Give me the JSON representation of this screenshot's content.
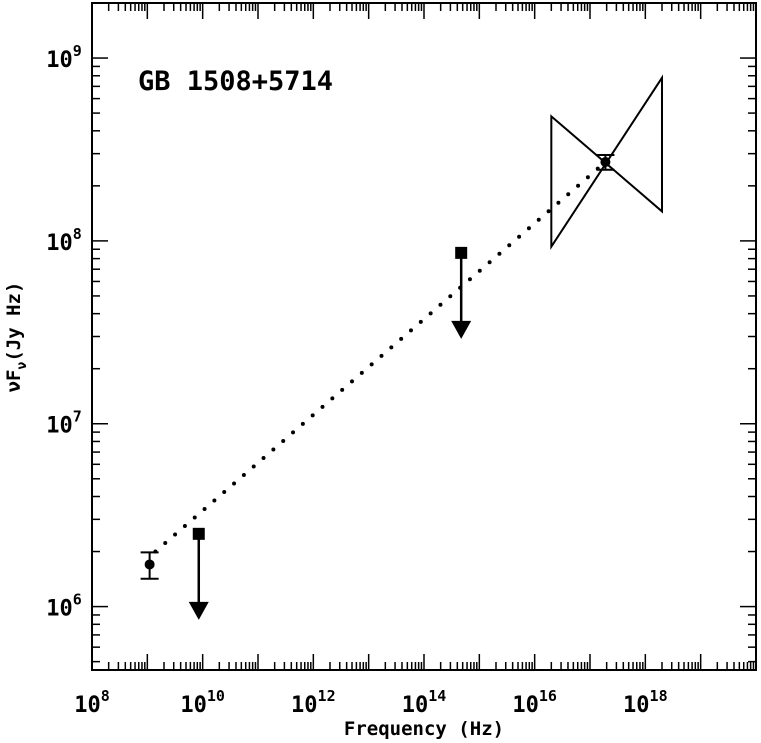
{
  "chart_data": {
    "type": "scatter",
    "title": "",
    "annotation": "GB 1508+5714",
    "xlabel": "Frequency (Hz)",
    "ylabel": {
      "prefix": "ν",
      "main": "F",
      "subscript": "ν",
      "suffix": "(Jy Hz)"
    },
    "xscale": "log",
    "yscale": "log",
    "xlim": [
      100000000.0,
      1e+20
    ],
    "ylim": [
      450000.0,
      2000000000.0
    ],
    "grid": false,
    "x_ticks": [
      {
        "value": 100000000.0,
        "base": "10",
        "exp": "8"
      },
      {
        "value": 10000000000.0,
        "base": "10",
        "exp": "10"
      },
      {
        "value": 1000000000000.0,
        "base": "10",
        "exp": "12"
      },
      {
        "value": 100000000000000.0,
        "base": "10",
        "exp": "14"
      },
      {
        "value": 1e+16,
        "base": "10",
        "exp": "16"
      },
      {
        "value": 1e+18,
        "base": "10",
        "exp": "18"
      }
    ],
    "y_ticks": [
      {
        "value": 1000000.0,
        "base": "10",
        "exp": "6"
      },
      {
        "value": 10000000.0,
        "base": "10",
        "exp": "7"
      },
      {
        "value": 100000000.0,
        "base": "10",
        "exp": "8"
      },
      {
        "value": 1000000000.0,
        "base": "10",
        "exp": "9"
      }
    ],
    "detections": [
      {
        "x": 1100000000.0,
        "y": 1700000.0,
        "y_err": [
          1420000.0,
          1980000.0
        ]
      },
      {
        "x": 1.9e+17,
        "y": 270000000.0,
        "y_err": [
          245000000.0,
          295000000.0
        ]
      }
    ],
    "upper_limits": [
      {
        "x": 8500000000.0,
        "y": 2500000.0
      },
      {
        "x": 470000000000000.0,
        "y": 86000000.0
      }
    ],
    "model_line": {
      "style": "dotted",
      "points": [
        [
          1400000000.0,
          2000000.0
        ],
        [
          1.9e+17,
          270000000.0
        ]
      ]
    },
    "xray_bowtie": {
      "x_range": [
        2e+16,
        2e+18
      ],
      "low_edge": [
        93000000.0,
        145000000.0
      ],
      "high_edge": [
        480000000.0,
        780000000.0
      ]
    }
  }
}
